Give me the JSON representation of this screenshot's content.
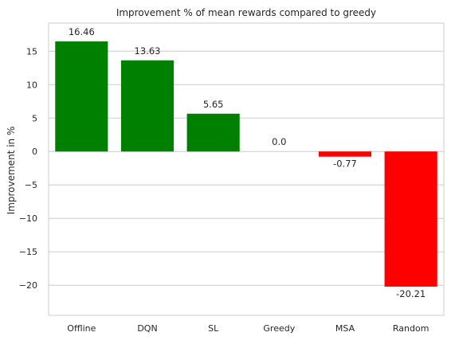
{
  "chart_data": {
    "type": "bar",
    "title": "Improvement % of mean rewards compared to greedy",
    "xlabel": "",
    "ylabel": "Improvement in %",
    "categories": [
      "Offline",
      "DQN",
      "SL",
      "Greedy",
      "MSA",
      "Random"
    ],
    "values": [
      16.46,
      13.63,
      5.65,
      0.0,
      -0.77,
      -20.21
    ],
    "value_labels": [
      "16.46",
      "13.63",
      "5.65",
      "0.0",
      "-0.77",
      "-20.21"
    ],
    "bar_colors": [
      "#008000",
      "#008000",
      "#008000",
      "#008000",
      "#ff0000",
      "#ff0000"
    ],
    "ylim": [
      -24.5,
      19.2
    ],
    "yticks": [
      15,
      10,
      5,
      0,
      -5,
      -10,
      -15,
      -20
    ],
    "ytick_labels": [
      "15",
      "10",
      "5",
      "0",
      "−5",
      "−10",
      "−15",
      "−20"
    ],
    "grid": "horizontal",
    "grid_color": "#cccccc",
    "frame_color": "#cccccc",
    "legend": "none"
  }
}
